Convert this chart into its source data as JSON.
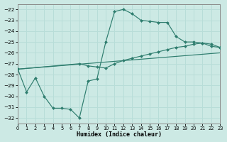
{
  "xlabel": "Humidex (Indice chaleur)",
  "xlim": [
    0,
    23
  ],
  "ylim": [
    -32.5,
    -21.5
  ],
  "yticks": [
    -32,
    -31,
    -30,
    -29,
    -28,
    -27,
    -26,
    -25,
    -24,
    -23,
    -22
  ],
  "xticks": [
    0,
    1,
    2,
    3,
    4,
    5,
    6,
    7,
    8,
    9,
    10,
    11,
    12,
    13,
    14,
    15,
    16,
    17,
    18,
    19,
    20,
    21,
    22,
    23
  ],
  "bg_color": "#cce9e4",
  "line_color": "#2e7d6e",
  "grid_color": "#b8ddd8",
  "line1_x": [
    0,
    1,
    2,
    3,
    4,
    5,
    6,
    7,
    8,
    9,
    10,
    11,
    12,
    13,
    14,
    15,
    16,
    17,
    18,
    19,
    20,
    21,
    22,
    23
  ],
  "line1_y": [
    -27.5,
    -29.6,
    -28.3,
    -30.0,
    -31.1,
    -31.1,
    -31.2,
    -32.0,
    -28.6,
    -28.4,
    -25.0,
    -22.2,
    -22.0,
    -22.4,
    -23.0,
    -23.1,
    -23.2,
    -23.2,
    -24.5,
    -25.0,
    -25.0,
    -25.1,
    -25.2,
    -25.5
  ],
  "line2_x": [
    0,
    7,
    8,
    9,
    10,
    11,
    12,
    13,
    14,
    15,
    16,
    17,
    18,
    19,
    20,
    21,
    22,
    23
  ],
  "line2_y": [
    -27.5,
    -27.0,
    -27.2,
    -27.3,
    -27.4,
    -27.0,
    -26.7,
    -26.5,
    -26.3,
    -26.1,
    -25.9,
    -25.7,
    -25.5,
    -25.4,
    -25.2,
    -25.1,
    -25.4,
    -25.5
  ],
  "line3_x": [
    0,
    23
  ],
  "line3_y": [
    -27.5,
    -26.0
  ]
}
